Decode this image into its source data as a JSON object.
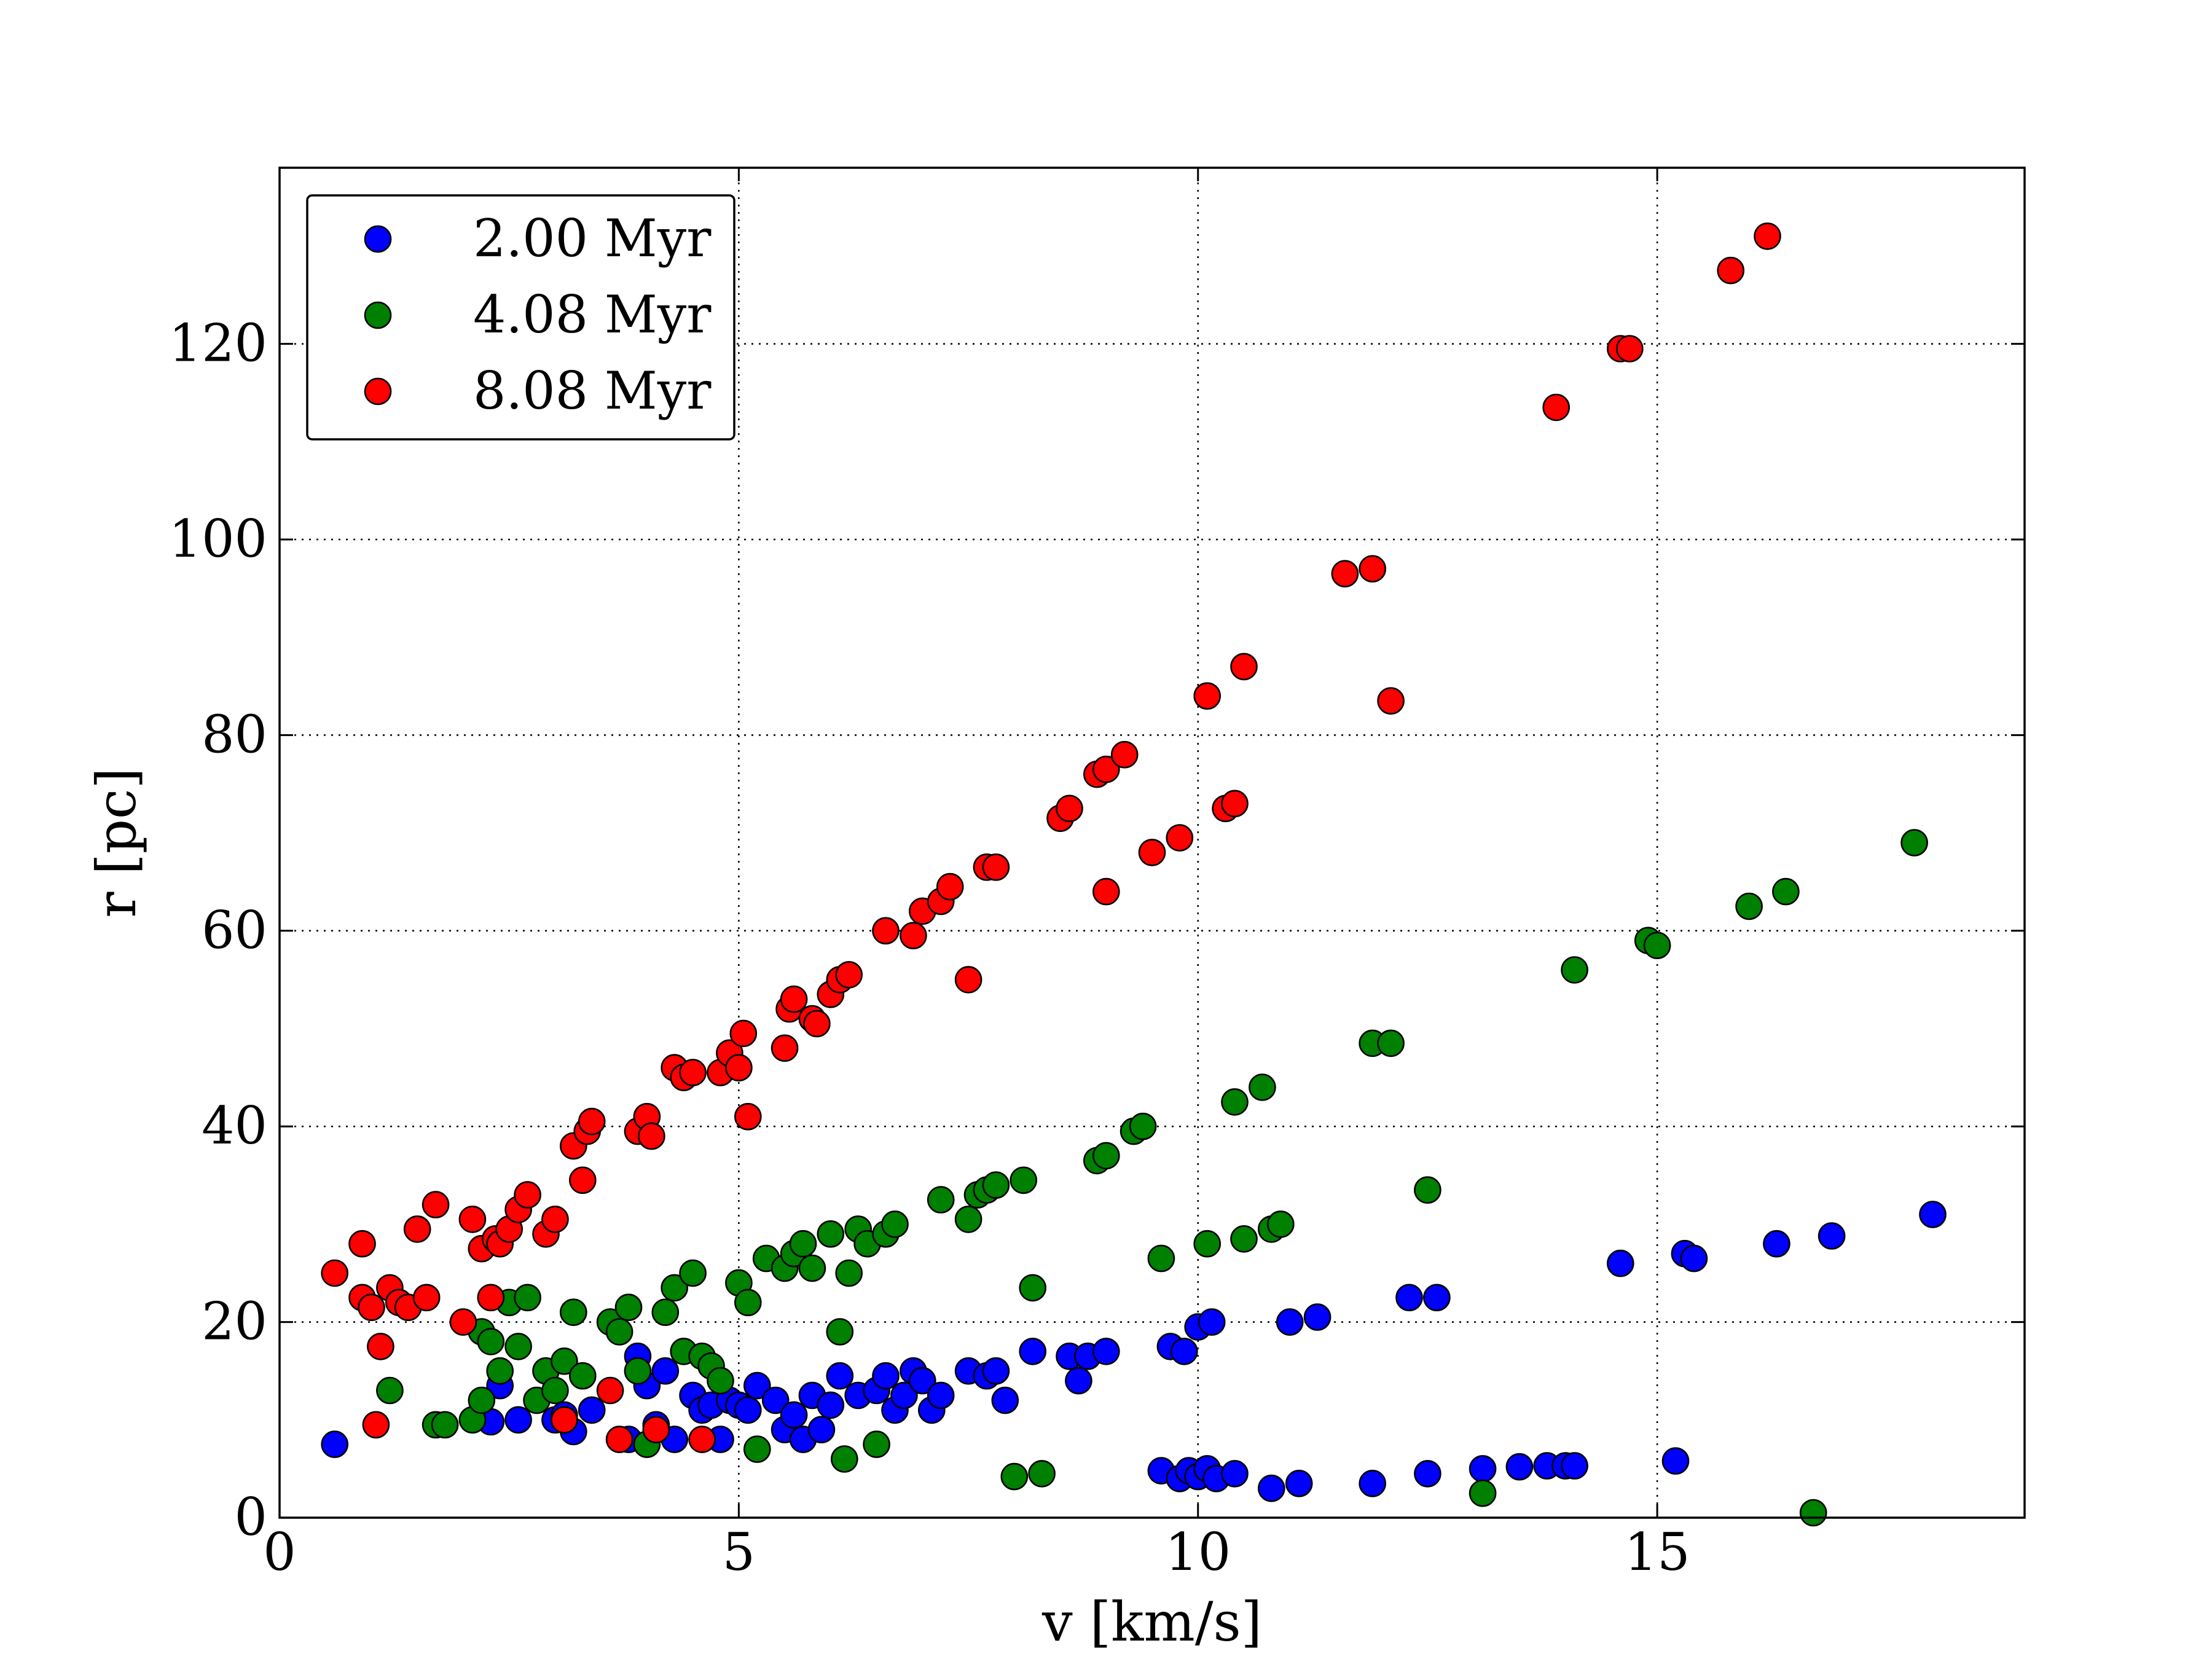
{
  "chart_data": {
    "type": "scatter",
    "xlabel": "v [km/s]",
    "ylabel": "r [pc]",
    "xlim": [
      0,
      19
    ],
    "ylim": [
      0,
      138
    ],
    "xticks": [
      0,
      5,
      10,
      15
    ],
    "yticks": [
      0,
      20,
      40,
      60,
      80,
      100,
      120
    ],
    "grid": true,
    "legend_position": "top-left",
    "series": [
      {
        "name": "2.00 Myr",
        "color": "#0000ff",
        "points": [
          [
            0.6,
            7.5
          ],
          [
            2.3,
            9.8
          ],
          [
            2.4,
            13.5
          ],
          [
            2.6,
            10
          ],
          [
            3.0,
            10
          ],
          [
            3.1,
            10.5
          ],
          [
            3.2,
            8.8
          ],
          [
            3.4,
            11
          ],
          [
            3.8,
            8
          ],
          [
            3.9,
            16.5
          ],
          [
            4.0,
            13.5
          ],
          [
            4.1,
            9.5
          ],
          [
            4.2,
            15
          ],
          [
            4.3,
            8
          ],
          [
            4.5,
            12.5
          ],
          [
            4.6,
            11
          ],
          [
            4.7,
            11.5
          ],
          [
            4.8,
            8
          ],
          [
            4.9,
            12
          ],
          [
            5.0,
            11.5
          ],
          [
            5.1,
            11
          ],
          [
            5.2,
            13.5
          ],
          [
            5.4,
            12
          ],
          [
            5.5,
            9
          ],
          [
            5.6,
            10.5
          ],
          [
            5.7,
            8
          ],
          [
            5.8,
            12.5
          ],
          [
            5.9,
            9
          ],
          [
            6.0,
            11.5
          ],
          [
            6.1,
            14.5
          ],
          [
            6.3,
            12.5
          ],
          [
            6.5,
            13
          ],
          [
            6.6,
            14.5
          ],
          [
            6.7,
            11
          ],
          [
            6.8,
            12.5
          ],
          [
            6.9,
            15
          ],
          [
            7.0,
            14
          ],
          [
            7.1,
            11
          ],
          [
            7.2,
            12.5
          ],
          [
            7.5,
            15
          ],
          [
            7.7,
            14.5
          ],
          [
            7.8,
            15
          ],
          [
            7.9,
            12
          ],
          [
            8.2,
            17
          ],
          [
            8.6,
            16.5
          ],
          [
            8.7,
            14
          ],
          [
            8.8,
            16.5
          ],
          [
            9.0,
            17
          ],
          [
            9.6,
            4.8
          ],
          [
            9.7,
            17.5
          ],
          [
            9.8,
            4
          ],
          [
            9.85,
            17
          ],
          [
            9.9,
            4.8
          ],
          [
            10.0,
            19.5
          ],
          [
            10.0,
            4.2
          ],
          [
            10.1,
            5
          ],
          [
            10.15,
            20
          ],
          [
            10.2,
            4
          ],
          [
            10.4,
            4.5
          ],
          [
            10.8,
            3
          ],
          [
            11.0,
            20
          ],
          [
            11.1,
            3.5
          ],
          [
            11.3,
            20.5
          ],
          [
            11.9,
            3.5
          ],
          [
            12.3,
            22.5
          ],
          [
            12.5,
            4.5
          ],
          [
            12.6,
            22.5
          ],
          [
            13.1,
            5
          ],
          [
            13.5,
            5.2
          ],
          [
            13.8,
            5.3
          ],
          [
            14.0,
            5.3
          ],
          [
            14.1,
            5.3
          ],
          [
            14.6,
            26
          ],
          [
            15.2,
            5.8
          ],
          [
            15.3,
            27
          ],
          [
            15.4,
            26.5
          ],
          [
            16.3,
            28
          ],
          [
            16.9,
            28.8
          ],
          [
            18.0,
            31
          ]
        ]
      },
      {
        "name": "4.08 Myr",
        "color": "#008000",
        "points": [
          [
            1.2,
            13
          ],
          [
            1.7,
            9.5
          ],
          [
            1.8,
            9.5
          ],
          [
            2.1,
            10
          ],
          [
            2.2,
            12
          ],
          [
            2.2,
            19
          ],
          [
            2.3,
            18
          ],
          [
            2.4,
            15
          ],
          [
            2.5,
            22
          ],
          [
            2.6,
            17.5
          ],
          [
            2.7,
            22.5
          ],
          [
            2.8,
            12
          ],
          [
            2.9,
            15
          ],
          [
            3.0,
            13
          ],
          [
            3.1,
            16
          ],
          [
            3.2,
            21
          ],
          [
            3.3,
            14.5
          ],
          [
            3.6,
            20
          ],
          [
            3.7,
            19
          ],
          [
            3.8,
            21.5
          ],
          [
            3.9,
            15
          ],
          [
            4.0,
            7.5
          ],
          [
            4.2,
            21
          ],
          [
            4.3,
            23.5
          ],
          [
            4.4,
            17
          ],
          [
            4.5,
            25
          ],
          [
            4.6,
            16.5
          ],
          [
            4.7,
            15.5
          ],
          [
            4.8,
            14
          ],
          [
            5.0,
            24
          ],
          [
            5.1,
            22
          ],
          [
            5.2,
            7
          ],
          [
            5.3,
            26.5
          ],
          [
            5.5,
            25.5
          ],
          [
            5.6,
            27
          ],
          [
            5.7,
            28
          ],
          [
            5.8,
            25.5
          ],
          [
            6.0,
            29
          ],
          [
            6.1,
            19
          ],
          [
            6.15,
            6
          ],
          [
            6.2,
            25
          ],
          [
            6.3,
            29.5
          ],
          [
            6.4,
            28
          ],
          [
            6.5,
            7.5
          ],
          [
            6.6,
            29
          ],
          [
            6.7,
            30
          ],
          [
            7.2,
            32.5
          ],
          [
            7.5,
            30.5
          ],
          [
            7.6,
            33
          ],
          [
            7.7,
            33.5
          ],
          [
            7.8,
            34
          ],
          [
            8.0,
            4.2
          ],
          [
            8.1,
            34.5
          ],
          [
            8.2,
            23.5
          ],
          [
            8.3,
            4.5
          ],
          [
            8.9,
            36.5
          ],
          [
            9.0,
            37
          ],
          [
            9.3,
            39.5
          ],
          [
            9.4,
            40
          ],
          [
            9.6,
            26.5
          ],
          [
            10.1,
            28
          ],
          [
            10.4,
            42.5
          ],
          [
            10.5,
            28.5
          ],
          [
            10.7,
            44
          ],
          [
            10.8,
            29.5
          ],
          [
            10.9,
            30
          ],
          [
            11.9,
            48.5
          ],
          [
            12.1,
            48.5
          ],
          [
            12.5,
            33.5
          ],
          [
            13.1,
            2.5
          ],
          [
            14.1,
            56
          ],
          [
            14.9,
            59
          ],
          [
            15.0,
            58.5
          ],
          [
            16.0,
            62.5
          ],
          [
            16.4,
            64
          ],
          [
            16.7,
            0.5
          ],
          [
            17.8,
            69
          ]
        ]
      },
      {
        "name": "8.08 Myr",
        "color": "#ff0000",
        "points": [
          [
            0.6,
            25
          ],
          [
            0.9,
            28
          ],
          [
            0.9,
            22.5
          ],
          [
            1.0,
            21.5
          ],
          [
            1.05,
            9.5
          ],
          [
            1.1,
            17.5
          ],
          [
            1.2,
            23.5
          ],
          [
            1.3,
            22
          ],
          [
            1.4,
            21.5
          ],
          [
            1.5,
            29.5
          ],
          [
            1.6,
            22.5
          ],
          [
            1.7,
            32
          ],
          [
            2.0,
            20
          ],
          [
            2.1,
            30.5
          ],
          [
            2.2,
            27.5
          ],
          [
            2.3,
            22.5
          ],
          [
            2.35,
            28.5
          ],
          [
            2.4,
            28
          ],
          [
            2.5,
            29.5
          ],
          [
            2.6,
            31.5
          ],
          [
            2.7,
            33
          ],
          [
            2.9,
            29
          ],
          [
            3.0,
            30.5
          ],
          [
            3.1,
            10
          ],
          [
            3.2,
            38
          ],
          [
            3.3,
            34.5
          ],
          [
            3.35,
            39.5
          ],
          [
            3.4,
            40.5
          ],
          [
            3.6,
            13
          ],
          [
            3.7,
            8
          ],
          [
            3.9,
            39.5
          ],
          [
            4.0,
            41
          ],
          [
            4.05,
            39
          ],
          [
            4.1,
            9
          ],
          [
            4.3,
            46
          ],
          [
            4.4,
            45
          ],
          [
            4.5,
            45.5
          ],
          [
            4.6,
            8
          ],
          [
            4.8,
            45.5
          ],
          [
            4.9,
            47.5
          ],
          [
            5.0,
            46
          ],
          [
            5.05,
            49.5
          ],
          [
            5.1,
            41
          ],
          [
            5.5,
            48
          ],
          [
            5.55,
            52
          ],
          [
            5.6,
            53
          ],
          [
            5.8,
            51
          ],
          [
            5.85,
            50.5
          ],
          [
            6.0,
            53.5
          ],
          [
            6.1,
            55
          ],
          [
            6.2,
            55.5
          ],
          [
            6.6,
            60
          ],
          [
            6.9,
            59.5
          ],
          [
            7.0,
            62
          ],
          [
            7.2,
            63
          ],
          [
            7.3,
            64.5
          ],
          [
            7.5,
            55
          ],
          [
            7.7,
            66.5
          ],
          [
            7.8,
            66.5
          ],
          [
            8.5,
            71.5
          ],
          [
            8.6,
            72.5
          ],
          [
            8.9,
            76
          ],
          [
            9.0,
            76.5
          ],
          [
            9.2,
            78
          ],
          [
            9.0,
            64
          ],
          [
            9.5,
            68
          ],
          [
            9.8,
            69.5
          ],
          [
            10.1,
            84
          ],
          [
            10.3,
            72.5
          ],
          [
            10.4,
            73
          ],
          [
            10.5,
            87
          ],
          [
            11.6,
            96.5
          ],
          [
            11.9,
            97
          ],
          [
            12.1,
            83.5
          ],
          [
            13.9,
            113.5
          ],
          [
            14.6,
            119.5
          ],
          [
            14.7,
            119.5
          ],
          [
            15.8,
            127.5
          ],
          [
            16.2,
            131
          ]
        ]
      }
    ]
  }
}
